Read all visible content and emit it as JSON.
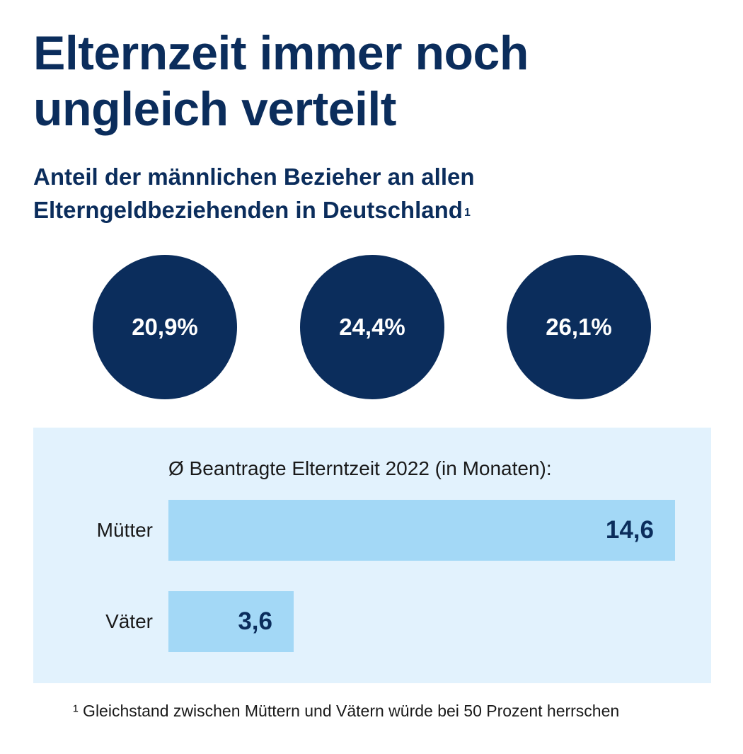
{
  "title_line1": "Elternzeit immer noch",
  "title_line2": "ungleich verteilt",
  "subtitle_line1": "Anteil der männlichen Bezieher an allen",
  "subtitle_line2": "Elterngeldbeziehenden in Deutschland",
  "subtitle_footnote_mark": "1",
  "circles": [
    "20,9%",
    "24,4%",
    "26,1%"
  ],
  "colors": {
    "navy": "#0b2d5c",
    "panel_bg": "#e2f2fd",
    "bar": "#a3d8f6"
  },
  "chart_data": {
    "type": "bar",
    "orientation": "horizontal",
    "title": "Ø Beantragte Elterntzeit 2022 (in Monaten):",
    "categories": [
      "Mütter",
      "Väter"
    ],
    "values": [
      14.6,
      3.6
    ],
    "value_labels": [
      "14,6",
      "3,6"
    ],
    "xlim": [
      0,
      14.6
    ]
  },
  "footnote": "¹ Gleichstand zwischen Müttern und Vätern würde bei 50 Prozent herrschen"
}
